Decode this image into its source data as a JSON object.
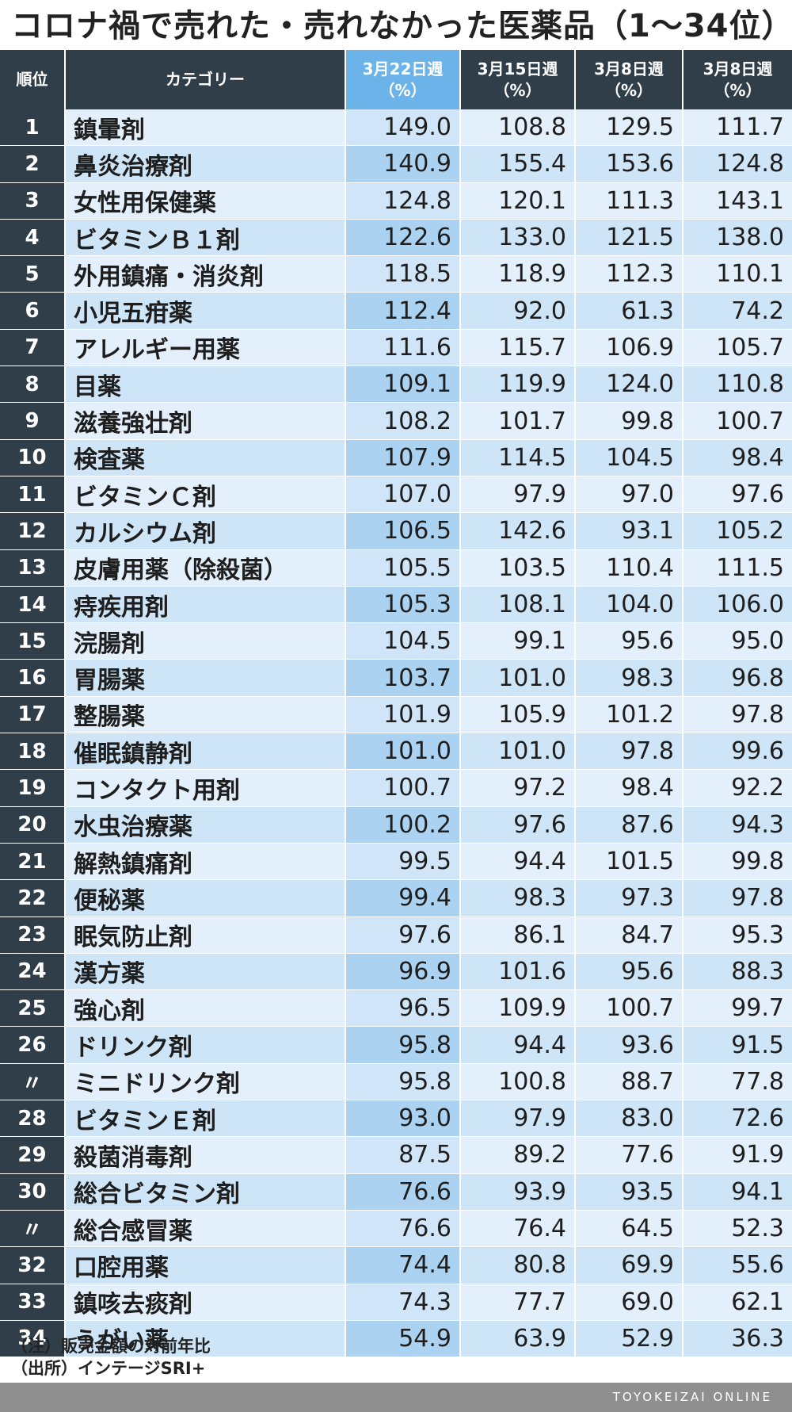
{
  "title": "コロナ禍で売れた・売れなかった医薬品（1〜34位）",
  "colors": {
    "accent": "#d9343f",
    "header_bg": "#2f3e49",
    "highlight_header": "#6cb3e9",
    "row_light": "#e3f0fb",
    "row_dark": "#cde5f7"
  },
  "table": {
    "headers": {
      "rank": "順位",
      "category": "カテゴリー",
      "w1": [
        "3月22日週",
        "（%）"
      ],
      "w2": [
        "3月15日週",
        "（%）"
      ],
      "w3": [
        "3月8日週",
        "（%）"
      ],
      "w4": [
        "3月8日週",
        "（%）"
      ]
    },
    "rows": [
      [
        "1",
        "鎮暈剤",
        "149.0",
        "108.8",
        "129.5",
        "111.7"
      ],
      [
        "2",
        "鼻炎治療剤",
        "140.9",
        "155.4",
        "153.6",
        "124.8"
      ],
      [
        "3",
        "女性用保健薬",
        "124.8",
        "120.1",
        "111.3",
        "143.1"
      ],
      [
        "4",
        "ビタミンＢ１剤",
        "122.6",
        "133.0",
        "121.5",
        "138.0"
      ],
      [
        "5",
        "外用鎮痛・消炎剤",
        "118.5",
        "118.9",
        "112.3",
        "110.1"
      ],
      [
        "6",
        "小児五疳薬",
        "112.4",
        "92.0",
        "61.3",
        "74.2"
      ],
      [
        "7",
        "アレルギー用薬",
        "111.6",
        "115.7",
        "106.9",
        "105.7"
      ],
      [
        "8",
        "目薬",
        "109.1",
        "119.9",
        "124.0",
        "110.8"
      ],
      [
        "9",
        "滋養強壮剤",
        "108.2",
        "101.7",
        "99.8",
        "100.7"
      ],
      [
        "10",
        "検査薬",
        "107.9",
        "114.5",
        "104.5",
        "98.4"
      ],
      [
        "11",
        "ビタミンＣ剤",
        "107.0",
        "97.9",
        "97.0",
        "97.6"
      ],
      [
        "12",
        "カルシウム剤",
        "106.5",
        "142.6",
        "93.1",
        "105.2"
      ],
      [
        "13",
        "皮膚用薬（除殺菌）",
        "105.5",
        "103.5",
        "110.4",
        "111.5"
      ],
      [
        "14",
        "痔疾用剤",
        "105.3",
        "108.1",
        "104.0",
        "106.0"
      ],
      [
        "15",
        "浣腸剤",
        "104.5",
        "99.1",
        "95.6",
        "95.0"
      ],
      [
        "16",
        "胃腸薬",
        "103.7",
        "101.0",
        "98.3",
        "96.8"
      ],
      [
        "17",
        "整腸薬",
        "101.9",
        "105.9",
        "101.2",
        "97.8"
      ],
      [
        "18",
        "催眠鎮静剤",
        "101.0",
        "101.0",
        "97.8",
        "99.6"
      ],
      [
        "19",
        "コンタクト用剤",
        "100.7",
        "97.2",
        "98.4",
        "92.2"
      ],
      [
        "20",
        "水虫治療薬",
        "100.2",
        "97.6",
        "87.6",
        "94.3"
      ],
      [
        "21",
        "解熱鎮痛剤",
        "99.5",
        "94.4",
        "101.5",
        "99.8"
      ],
      [
        "22",
        "便秘薬",
        "99.4",
        "98.3",
        "97.3",
        "97.8"
      ],
      [
        "23",
        "眠気防止剤",
        "97.6",
        "86.1",
        "84.7",
        "95.3"
      ],
      [
        "24",
        "漢方薬",
        "96.9",
        "101.6",
        "95.6",
        "88.3"
      ],
      [
        "25",
        "強心剤",
        "96.5",
        "109.9",
        "100.7",
        "99.7"
      ],
      [
        "26",
        "ドリンク剤",
        "95.8",
        "94.4",
        "93.6",
        "91.5"
      ],
      [
        "〃",
        "ミニドリンク剤",
        "95.8",
        "100.8",
        "88.7",
        "77.8"
      ],
      [
        "28",
        "ビタミンＥ剤",
        "93.0",
        "97.9",
        "83.0",
        "72.6"
      ],
      [
        "29",
        "殺菌消毒剤",
        "87.5",
        "89.2",
        "77.6",
        "91.9"
      ],
      [
        "30",
        "総合ビタミン剤",
        "76.6",
        "93.9",
        "93.5",
        "94.1"
      ],
      [
        "〃",
        "総合感冒薬",
        "76.6",
        "76.4",
        "64.5",
        "52.3"
      ],
      [
        "32",
        "口腔用薬",
        "74.4",
        "80.8",
        "69.9",
        "55.6"
      ],
      [
        "33",
        "鎮咳去痰剤",
        "74.3",
        "77.7",
        "69.0",
        "62.1"
      ],
      [
        "34",
        "うがい薬",
        "54.9",
        "63.9",
        "52.9",
        "36.3"
      ]
    ]
  },
  "notes": [
    "（注）販売金額の対前年比",
    "（出所）インテージSRI+"
  ],
  "footer": {
    "brand": "TOYOKEIZAI ONLINE"
  }
}
